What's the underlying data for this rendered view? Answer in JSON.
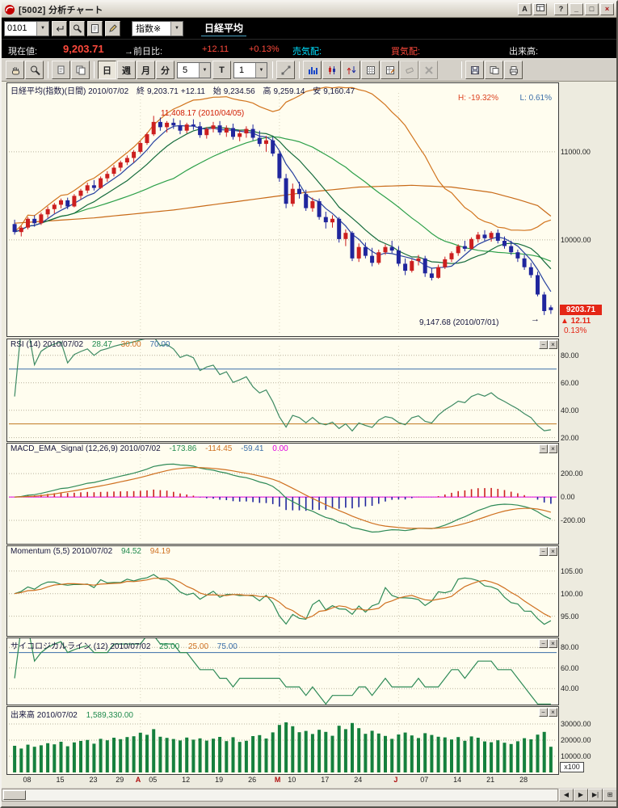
{
  "icons": {
    "dropdown": "▼",
    "minimize": "_",
    "maximize": "□",
    "close": "×",
    "panel_min": "−",
    "panel_close": "×",
    "nav_prev": "◀",
    "nav_next": "▶",
    "nav_last": "▶|",
    "nav_mode": "⊞"
  },
  "window": {
    "title": "[5002] 分析チャート",
    "a_button": "A",
    "help_button": "?"
  },
  "command_bar": {
    "code_value": "0101",
    "category_dropdown": "指数※",
    "symbol_name": "日経平均"
  },
  "quote_bar": {
    "current_label": "現在値:",
    "current_value": "9,203.71",
    "prev_label": "→前日比:",
    "change_value": "+12.11",
    "change_pct": "+0.13%",
    "sell_label": "売気配:",
    "buy_label": "買気配:",
    "volume_label": "出来高:"
  },
  "toolbar": {
    "period_day": "日",
    "period_week": "週",
    "period_month": "月",
    "period_minute": "分",
    "interval_value": "5",
    "t_button": "T",
    "count_value": "1"
  },
  "panels": {
    "main": {
      "title": "日経平均(指数)(日間) 2010/07/02",
      "close_label": "終",
      "close_value": "9,203.71",
      "change_value": "+12.11",
      "open_label": "始",
      "open_value": "9,234.56",
      "high_label": "高",
      "high_value": "9,259.14",
      "low_label": "安",
      "low_value": "9,160.47",
      "h_stat": "H: -19.32%",
      "l_stat": "L: 0.61%",
      "peak_annotation": "11,408.17 (2010/04/05)",
      "trough_annotation": "9,147.68 (2010/07/01)",
      "trough_arrow": "→",
      "price_marker": {
        "price": "9203.71",
        "change": "▲ 12.11",
        "pct": "0.13%"
      }
    },
    "rsi": {
      "title": "RSI (14) 2010/07/02",
      "value": "28.47",
      "lower_level": "30.00",
      "upper_level": "70.00"
    },
    "macd": {
      "title": "MACD_EMA_Signal (12,26,9) 2010/07/02",
      "macd_value": "-173.86",
      "signal_value": "-114.45",
      "hist_value": "-59.41",
      "zero_value": "0.00"
    },
    "momentum": {
      "title": "Momentum (5,5) 2010/07/02",
      "value": "94.52",
      "signal_value": "94.19"
    },
    "psych": {
      "title": "サイコロジカルライン (12) 2010/07/02",
      "value": "25.00",
      "lower_level": "25.00",
      "upper_level": "75.00"
    },
    "volume": {
      "title": "出来高 2010/07/02",
      "value": "1,589,330.00",
      "unit": "x100"
    }
  },
  "chart_data": {
    "type": "candlestick",
    "symbol": "日経平均",
    "date": "2010/07/02",
    "x_labels": [
      {
        "i": 2,
        "t": "08"
      },
      {
        "i": 7,
        "t": "15"
      },
      {
        "i": 12,
        "t": "23"
      },
      {
        "i": 16,
        "t": "29"
      },
      {
        "i": 19,
        "t": "A",
        "m": true
      },
      {
        "i": 21,
        "t": "05"
      },
      {
        "i": 26,
        "t": "12"
      },
      {
        "i": 31,
        "t": "19"
      },
      {
        "i": 36,
        "t": "26"
      },
      {
        "i": 40,
        "t": "M",
        "m": true
      },
      {
        "i": 42,
        "t": "10"
      },
      {
        "i": 47,
        "t": "17"
      },
      {
        "i": 52,
        "t": "24"
      },
      {
        "i": 58,
        "t": "J",
        "m": true
      },
      {
        "i": 62,
        "t": "07"
      },
      {
        "i": 67,
        "t": "14"
      },
      {
        "i": 72,
        "t": "21"
      },
      {
        "i": 77,
        "t": "28"
      }
    ],
    "candles": [
      [
        10180,
        10230,
        10060,
        10090,
        16500
      ],
      [
        10090,
        10160,
        10040,
        10140,
        14800
      ],
      [
        10140,
        10260,
        10120,
        10240,
        17200
      ],
      [
        10240,
        10280,
        10150,
        10190,
        15900
      ],
      [
        10190,
        10310,
        10170,
        10290,
        16800
      ],
      [
        10290,
        10380,
        10250,
        10350,
        18100
      ],
      [
        10350,
        10420,
        10300,
        10400,
        17400
      ],
      [
        10400,
        10470,
        10360,
        10450,
        19000
      ],
      [
        10450,
        10480,
        10350,
        10380,
        16200
      ],
      [
        10380,
        10520,
        10370,
        10500,
        18600
      ],
      [
        10500,
        10580,
        10460,
        10560,
        19500
      ],
      [
        10560,
        10650,
        10530,
        10620,
        20100
      ],
      [
        10620,
        10680,
        10560,
        10590,
        17800
      ],
      [
        10590,
        10720,
        10580,
        10700,
        20800
      ],
      [
        10700,
        10780,
        10660,
        10750,
        19900
      ],
      [
        10750,
        10850,
        10720,
        10820,
        21500
      ],
      [
        10820,
        10900,
        10780,
        10880,
        20600
      ],
      [
        10880,
        10960,
        10850,
        10930,
        21900
      ],
      [
        10930,
        11020,
        10880,
        11000,
        22400
      ],
      [
        11000,
        11120,
        10980,
        11100,
        24600
      ],
      [
        11100,
        11220,
        11080,
        11200,
        23300
      ],
      [
        11200,
        11408.17,
        11180,
        11340,
        26800
      ],
      [
        11340,
        11390,
        11240,
        11280,
        22100
      ],
      [
        11280,
        11350,
        11220,
        11330,
        21400
      ],
      [
        11330,
        11380,
        11260,
        11300,
        20700
      ],
      [
        11300,
        11360,
        11200,
        11240,
        19800
      ],
      [
        11240,
        11330,
        11210,
        11310,
        21600
      ],
      [
        11310,
        11370,
        11250,
        11290,
        20300
      ],
      [
        11290,
        11340,
        11160,
        11190,
        21100
      ],
      [
        11190,
        11280,
        11150,
        11260,
        19700
      ],
      [
        11260,
        11340,
        11220,
        11300,
        20900
      ],
      [
        11300,
        11350,
        11190,
        11220,
        22000
      ],
      [
        11220,
        11300,
        11170,
        11270,
        19400
      ],
      [
        11270,
        11320,
        11140,
        11170,
        21800
      ],
      [
        11170,
        11250,
        11120,
        11210,
        18900
      ],
      [
        11210,
        11290,
        11160,
        11260,
        19600
      ],
      [
        11260,
        11310,
        11130,
        11160,
        22500
      ],
      [
        11160,
        11240,
        11060,
        11090,
        23100
      ],
      [
        11090,
        11180,
        11000,
        11130,
        21000
      ],
      [
        11130,
        11170,
        10950,
        10980,
        24800
      ],
      [
        10980,
        11010,
        10660,
        10700,
        29400
      ],
      [
        10700,
        10750,
        10360,
        10410,
        31000
      ],
      [
        10410,
        10640,
        10380,
        10580,
        28600
      ],
      [
        10580,
        10660,
        10470,
        10520,
        24900
      ],
      [
        10520,
        10570,
        10330,
        10360,
        25700
      ],
      [
        10360,
        10480,
        10320,
        10440,
        23800
      ],
      [
        10440,
        10470,
        10230,
        10260,
        26400
      ],
      [
        10260,
        10320,
        10130,
        10200,
        25100
      ],
      [
        10200,
        10280,
        10140,
        10240,
        22700
      ],
      [
        10240,
        10260,
        9970,
        10010,
        28900
      ],
      [
        10010,
        10120,
        9930,
        10080,
        26800
      ],
      [
        10080,
        10100,
        9760,
        9790,
        30600
      ],
      [
        9790,
        9960,
        9750,
        9920,
        27400
      ],
      [
        9920,
        9970,
        9790,
        9820,
        23900
      ],
      [
        9820,
        9910,
        9700,
        9740,
        25800
      ],
      [
        9740,
        9890,
        9720,
        9860,
        24100
      ],
      [
        9860,
        9950,
        9830,
        9920,
        22600
      ],
      [
        9920,
        9990,
        9850,
        9880,
        20800
      ],
      [
        9880,
        9930,
        9700,
        9730,
        23500
      ],
      [
        9730,
        9790,
        9600,
        9650,
        24700
      ],
      [
        9650,
        9780,
        9630,
        9760,
        22900
      ],
      [
        9760,
        9830,
        9710,
        9790,
        21300
      ],
      [
        9790,
        9820,
        9580,
        9620,
        24300
      ],
      [
        9620,
        9680,
        9540,
        9570,
        23200
      ],
      [
        9570,
        9720,
        9560,
        9690,
        22100
      ],
      [
        9690,
        9810,
        9670,
        9780,
        21700
      ],
      [
        9780,
        9870,
        9750,
        9850,
        20400
      ],
      [
        9850,
        9950,
        9820,
        9930,
        21900
      ],
      [
        9930,
        9990,
        9870,
        9900,
        19600
      ],
      [
        9900,
        10030,
        9890,
        10010,
        22300
      ],
      [
        10010,
        10090,
        9970,
        10060,
        21500
      ],
      [
        10060,
        10110,
        9990,
        10020,
        19200
      ],
      [
        10020,
        10100,
        9980,
        10080,
        18700
      ],
      [
        10080,
        10120,
        9960,
        9990,
        19900
      ],
      [
        9990,
        10040,
        9900,
        9930,
        18400
      ],
      [
        9930,
        9990,
        9830,
        9860,
        17600
      ],
      [
        9860,
        9890,
        9750,
        9790,
        19300
      ],
      [
        9790,
        9830,
        9660,
        9690,
        21200
      ],
      [
        9690,
        9740,
        9570,
        9600,
        20500
      ],
      [
        9600,
        9640,
        9360,
        9380,
        23400
      ],
      [
        9380,
        9410,
        9147.68,
        9191.6,
        25100
      ],
      [
        9234.56,
        9259.14,
        9160.47,
        9203.71,
        15893
      ]
    ],
    "ma75": [
      [
        0,
        10190
      ],
      [
        12,
        10250
      ],
      [
        24,
        10340
      ],
      [
        36,
        10460
      ],
      [
        44,
        10540
      ],
      [
        52,
        10600
      ],
      [
        60,
        10620
      ],
      [
        66,
        10600
      ],
      [
        72,
        10540
      ],
      [
        76,
        10460
      ],
      [
        79,
        10390
      ],
      [
        81,
        10270
      ]
    ],
    "axes": {
      "main": {
        "ylim": [
          8917,
          11623
        ],
        "ticks": [
          [
            11000,
            "11000.00"
          ],
          [
            10000,
            "10000.00"
          ]
        ]
      },
      "rsi": {
        "ylim": [
          18,
          84
        ],
        "ticks": [
          [
            80,
            "80.00"
          ],
          [
            60,
            "60.00"
          ],
          [
            40,
            "40.00"
          ],
          [
            20,
            "20.00"
          ]
        ],
        "levels": [
          [
            70,
            "#3a6ea8"
          ],
          [
            30,
            "#c07820"
          ]
        ]
      },
      "macd": {
        "ylim": [
          -380,
          360
        ],
        "ticks": [
          [
            200,
            "200.00"
          ],
          [
            0,
            "0.00"
          ],
          [
            -200,
            "-200.00"
          ]
        ],
        "levels": [
          [
            0,
            "#e000e0"
          ]
        ]
      },
      "momentum": {
        "ylim": [
          91,
          108
        ],
        "ticks": [
          [
            105,
            "105.00"
          ],
          [
            100,
            "100.00"
          ],
          [
            95,
            "95.00"
          ]
        ]
      },
      "psych": {
        "ylim": [
          26,
          81
        ],
        "ticks": [
          [
            80,
            "80.00"
          ],
          [
            60,
            "60.00"
          ],
          [
            40,
            "40.00"
          ]
        ],
        "levels": [
          [
            75,
            "#3a6ea8"
          ]
        ]
      },
      "volume": {
        "ylim": [
          0,
          34000
        ],
        "ticks": [
          [
            30000,
            "30000.00"
          ],
          [
            20000,
            "20000.00"
          ],
          [
            10000,
            "10000.00"
          ]
        ]
      }
    },
    "colors": {
      "up": "#cc1f1f",
      "down": "#20269d",
      "ma5": "#27419f",
      "ma10": "#156b3c",
      "ma25": "#2da04a",
      "band": "#d2751f",
      "ma75": "#c86a18",
      "rsi": "#3d8a63",
      "macd": "#2e8a57",
      "signal": "#cf7020",
      "hist_pos": "#cc1f1f",
      "hist_neg": "#20269d",
      "momentum": "#2e8a57",
      "momentum_signal": "#cf7020",
      "psych": "#2e8a57",
      "volume": "#15803d",
      "grid": "#b9b29c"
    }
  }
}
